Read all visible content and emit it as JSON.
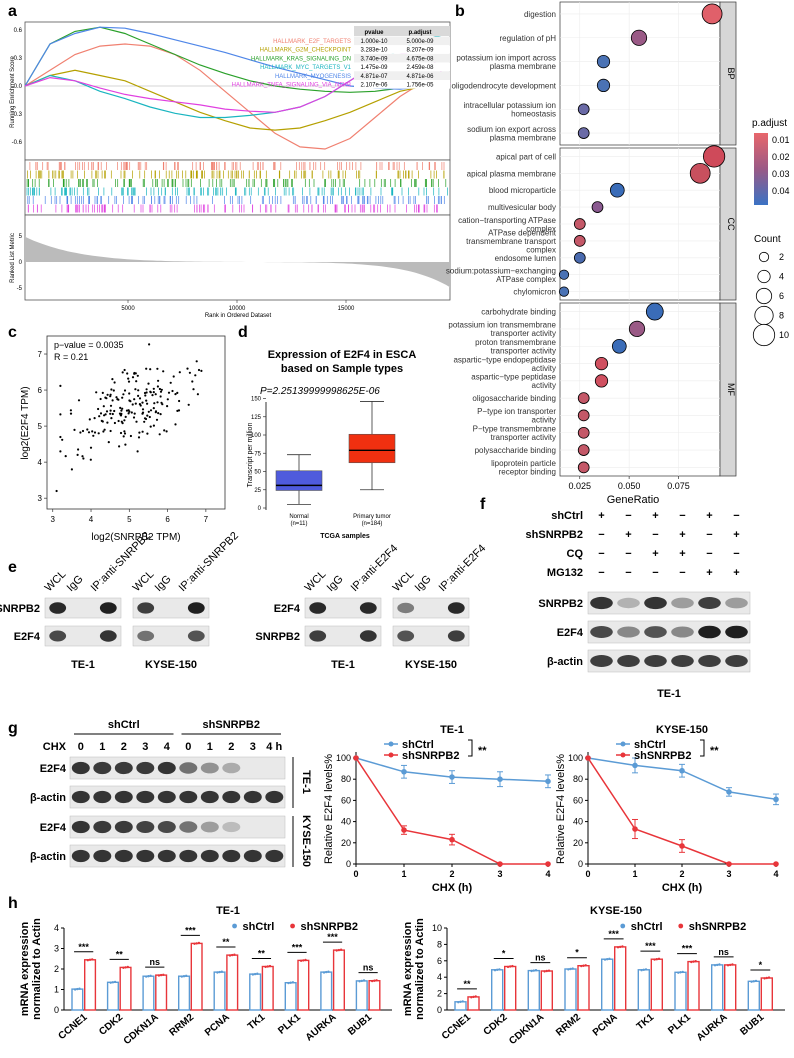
{
  "panel_labels": {
    "a": "a",
    "b": "b",
    "c": "c",
    "d": "d",
    "e": "e",
    "f": "f",
    "g": "g",
    "h": "h"
  },
  "panel_a": {
    "ylabel_top": "Running Enrichment Score",
    "ylabel_bottom": "Ranked List Metric",
    "xlabel": "Rank in Ordered Dataset",
    "yticks_top": [
      "0.6",
      "0.3",
      "0.0",
      "-0.3",
      "-0.6"
    ],
    "yticks_bottom": [
      "5",
      "0",
      "-5"
    ],
    "xticks": [
      "5000",
      "10000",
      "15000"
    ],
    "table_headers": [
      "pvalue",
      "p.adjust"
    ],
    "sets": [
      {
        "name": "HALLMARK_E2F_TARGETS",
        "pvalue": "1.000e-10",
        "padj": "5.000e-09",
        "color": "#f08070"
      },
      {
        "name": "HALLMARK_G2M_CHECKPOINT",
        "pvalue": "3.283e-10",
        "padj": "8.207e-09",
        "color": "#b5a000"
      },
      {
        "name": "HALLMARK_KRAS_SIGNALING_DN",
        "pvalue": "3.740e-09",
        "padj": "4.675e-08",
        "color": "#2aa02a"
      },
      {
        "name": "HALLMARK_MYC_TARGETS_V1",
        "pvalue": "1.475e-09",
        "padj": "2.459e-08",
        "color": "#1ab5c0"
      },
      {
        "name": "HALLMARK_MYOGENESIS",
        "pvalue": "4.871e-07",
        "padj": "4.871e-06",
        "color": "#4f86e8"
      },
      {
        "name": "HALLMARK_TNFA_SIGNALING_VIA_NFKB",
        "pvalue": "2.107e-06",
        "padj": "1.756e-05",
        "color": "#e040e0"
      }
    ]
  },
  "panel_b": {
    "xlabel": "GeneRatio",
    "xticks": [
      "0.025",
      "0.050",
      "0.075"
    ],
    "facets": [
      "BP",
      "CC",
      "MF"
    ],
    "legend_color_title": "p.adjust",
    "legend_color_ticks": [
      "0.01",
      "0.02",
      "0.03",
      "0.04"
    ],
    "legend_size_title": "Count",
    "legend_size_ticks": [
      "2",
      "4",
      "6",
      "8",
      "10"
    ],
    "terms": [
      {
        "label": "digestion",
        "facet": "BP",
        "ratio": 0.092,
        "count": 9,
        "color": "#e0606a"
      },
      {
        "label": "regulation of pH",
        "facet": "BP",
        "ratio": 0.055,
        "count": 6,
        "color": "#9a5a86"
      },
      {
        "label": "potassium ion import across\nplasma membrane",
        "facet": "BP",
        "ratio": 0.037,
        "count": 4,
        "color": "#4a72b4"
      },
      {
        "label": "oligodendrocyte development",
        "facet": "BP",
        "ratio": 0.037,
        "count": 4,
        "color": "#4a72b4"
      },
      {
        "label": "intracellular potassium ion\nhomeostasis",
        "facet": "BP",
        "ratio": 0.027,
        "count": 3,
        "color": "#6a6aa6"
      },
      {
        "label": "sodium ion export across\nplasma membrane",
        "facet": "BP",
        "ratio": 0.027,
        "count": 3,
        "color": "#6a6aa6"
      },
      {
        "label": "apical part of cell",
        "facet": "CC",
        "ratio": 0.093,
        "count": 10,
        "color": "#cf4a5a"
      },
      {
        "label": "apical plasma membrane",
        "facet": "CC",
        "ratio": 0.086,
        "count": 9,
        "color": "#c8505e"
      },
      {
        "label": "blood microparticle",
        "facet": "CC",
        "ratio": 0.044,
        "count": 5,
        "color": "#3a6cb8"
      },
      {
        "label": "multivesicular body",
        "facet": "CC",
        "ratio": 0.034,
        "count": 3,
        "color": "#8a5a90"
      },
      {
        "label": "cation−transporting ATPase\ncomplex",
        "facet": "CC",
        "ratio": 0.025,
        "count": 3,
        "color": "#c45868"
      },
      {
        "label": "ATPase dependent\ntransmembrane transport\ncomplex",
        "facet": "CC",
        "ratio": 0.025,
        "count": 3,
        "color": "#c45868"
      },
      {
        "label": "endosome lumen",
        "facet": "CC",
        "ratio": 0.025,
        "count": 3,
        "color": "#4a6aae"
      },
      {
        "label": "sodium:potassium−exchanging\nATPase complex",
        "facet": "CC",
        "ratio": 0.017,
        "count": 2,
        "color": "#4a72b4"
      },
      {
        "label": "chylomicron",
        "facet": "CC",
        "ratio": 0.017,
        "count": 2,
        "color": "#4a72b4"
      },
      {
        "label": "carbohydrate binding",
        "facet": "MF",
        "ratio": 0.063,
        "count": 7,
        "color": "#3a6cb8"
      },
      {
        "label": "potassium ion transmembrane\ntransporter activity",
        "facet": "MF",
        "ratio": 0.054,
        "count": 6,
        "color": "#9a5a86"
      },
      {
        "label": "proton transmembrane\ntransporter activity",
        "facet": "MF",
        "ratio": 0.045,
        "count": 5,
        "color": "#3a6cb8"
      },
      {
        "label": "aspartic−type endopeptidase\nactivity",
        "facet": "MF",
        "ratio": 0.036,
        "count": 4,
        "color": "#d05060"
      },
      {
        "label": "aspartic−type peptidase\nactivity",
        "facet": "MF",
        "ratio": 0.036,
        "count": 4,
        "color": "#d05060"
      },
      {
        "label": "oligosaccharide binding",
        "facet": "MF",
        "ratio": 0.027,
        "count": 3,
        "color": "#c45868"
      },
      {
        "label": "P−type ion transporter\nactivity",
        "facet": "MF",
        "ratio": 0.027,
        "count": 3,
        "color": "#c45868"
      },
      {
        "label": "P−type transmembrane\ntransporter activity",
        "facet": "MF",
        "ratio": 0.027,
        "count": 3,
        "color": "#c45868"
      },
      {
        "label": "polysaccharide binding",
        "facet": "MF",
        "ratio": 0.027,
        "count": 3,
        "color": "#c45868"
      },
      {
        "label": "lipoprotein particle\nreceptor binding",
        "facet": "MF",
        "ratio": 0.027,
        "count": 3,
        "color": "#c45868"
      }
    ]
  },
  "panel_c": {
    "xlabel": "log2(SNRPB2 TPM)",
    "ylabel": "log2(E2F4 TPM)",
    "annot_p": "p−value = 0.0035",
    "annot_r": "R = 0.21",
    "xticks": [
      "3",
      "4",
      "5",
      "6",
      "7"
    ],
    "yticks": [
      "3",
      "4",
      "5",
      "6",
      "7"
    ]
  },
  "panel_d": {
    "title_l1": "Expression of E2F4 in ESCA",
    "title_l2": "based on Sample types",
    "pval": "P=2.25139999998625E-06",
    "ylabel": "Transcript per million",
    "xlabel": "TCGA samples",
    "yticks": [
      "0",
      "25",
      "50",
      "75",
      "100",
      "125",
      "150"
    ],
    "groups": [
      {
        "name": "Normal",
        "n": "(n=11)",
        "q1": 24,
        "median": 31,
        "q3": 51,
        "min": 5,
        "max": 73,
        "color": "#4f5bdc"
      },
      {
        "name": "Primary tumor",
        "n": "(n=184)",
        "q1": 62,
        "median": 79,
        "q3": 101,
        "min": 25,
        "max": 146,
        "color": "#f03010"
      }
    ]
  },
  "panel_e": {
    "left": {
      "cols": [
        "WCL",
        "IgG",
        "IP:anti-SNRPB2"
      ],
      "rows": [
        "SNRPB2",
        "E2F4"
      ],
      "cells": [
        "TE-1",
        "KYSE-150"
      ]
    },
    "right": {
      "cols": [
        "WCL",
        "IgG",
        "IP:anti-E2F4"
      ],
      "rows": [
        "E2F4",
        "SNRPB2"
      ],
      "cells": [
        "TE-1",
        "KYSE-150"
      ]
    }
  },
  "panel_f": {
    "rows": [
      {
        "label": "shCtrl",
        "signs": [
          "+",
          "−",
          "+",
          "−",
          "+",
          "−"
        ]
      },
      {
        "label": "shSNRPB2",
        "signs": [
          "−",
          "+",
          "−",
          "+",
          "−",
          "+"
        ]
      },
      {
        "label": "CQ",
        "signs": [
          "−",
          "−",
          "+",
          "+",
          "−",
          "−"
        ]
      },
      {
        "label": "MG132",
        "signs": [
          "−",
          "−",
          "−",
          "−",
          "+",
          "+"
        ]
      }
    ],
    "blots": [
      "SNRPB2",
      "E2F4",
      "β-actin"
    ],
    "cell": "TE-1"
  },
  "panel_g": {
    "group_labels": [
      "shCtrl",
      "shSNRPB2"
    ],
    "chx_label": "CHX",
    "times": [
      "0",
      "1",
      "2",
      "3",
      "4",
      "0",
      "1",
      "2",
      "3",
      "4 h"
    ],
    "blots": [
      "E2F4",
      "β-actin",
      "E2F4",
      "β-actin"
    ],
    "cell_labels": [
      "TE-1",
      "KYSE-150"
    ],
    "charts": [
      {
        "title": "TE-1",
        "ylabel": "Relative E2F4 levels%",
        "xlabel": "CHX (h)",
        "sig": "**",
        "x": [
          0,
          1,
          2,
          3,
          4
        ],
        "xticks": [
          "0",
          "1",
          "2",
          "3",
          "4"
        ],
        "yticks": [
          "0",
          "20",
          "40",
          "60",
          "80",
          "100"
        ],
        "ylim": [
          0,
          100
        ],
        "series": [
          {
            "name": "shCtrl",
            "values": [
              100,
              87,
              82,
              80,
              78
            ],
            "err": [
              0,
              6,
              6,
              7,
              6
            ],
            "color": "#5b9bd5"
          },
          {
            "name": "shSNRPB2",
            "values": [
              100,
              32,
              23,
              0,
              0
            ],
            "err": [
              0,
              4,
              5,
              0,
              0
            ],
            "color": "#e8353a"
          }
        ]
      },
      {
        "title": "KYSE-150",
        "ylabel": "Relative E2F4 levels%",
        "xlabel": "CHX (h)",
        "sig": "**",
        "x": [
          0,
          1,
          2,
          3,
          4
        ],
        "xticks": [
          "0",
          "1",
          "2",
          "3",
          "4"
        ],
        "yticks": [
          "0",
          "20",
          "40",
          "60",
          "80",
          "100"
        ],
        "ylim": [
          0,
          100
        ],
        "series": [
          {
            "name": "shCtrl",
            "values": [
              100,
              93,
              88,
              68,
              61
            ],
            "err": [
              0,
              7,
              6,
              4,
              5
            ],
            "color": "#5b9bd5"
          },
          {
            "name": "shSNRPB2",
            "values": [
              100,
              33,
              17,
              0,
              0
            ],
            "err": [
              0,
              9,
              6,
              0,
              0
            ],
            "color": "#e8353a"
          }
        ]
      }
    ]
  },
  "chart_data": [
    {
      "type": "bar",
      "title": "TE-1",
      "ylabel": "mRNA expression\nnormalized to Actin",
      "ylim": [
        0,
        4
      ],
      "yticks": [
        "0",
        "1",
        "2",
        "3",
        "4"
      ],
      "categories": [
        "CCNE1",
        "CDK2",
        "CDKN1A",
        "RRM2",
        "PCNA",
        "TK1",
        "PLK1",
        "AURKA",
        "BUB1"
      ],
      "sig": [
        "***",
        "**",
        "ns",
        "***",
        "**",
        "**",
        "***",
        "***",
        "ns"
      ],
      "series": [
        {
          "name": "shCtrl",
          "values": [
            1.02,
            1.35,
            1.65,
            1.65,
            1.85,
            1.75,
            1.33,
            1.85,
            1.42
          ],
          "color": "#5b9bd5"
        },
        {
          "name": "shSNRPB2",
          "values": [
            2.45,
            2.08,
            1.7,
            3.25,
            2.68,
            2.12,
            2.42,
            2.92,
            1.43
          ],
          "color": "#e8353a"
        }
      ]
    },
    {
      "type": "bar",
      "title": "KYSE-150",
      "ylabel": "mRNA expression\nnormalized to Actin",
      "ylim": [
        0,
        10
      ],
      "yticks": [
        "0",
        "2",
        "4",
        "6",
        "8",
        "10"
      ],
      "categories": [
        "CCNE1",
        "CDK2",
        "CDKN1A",
        "RRM2",
        "PCNA",
        "TK1",
        "PLK1",
        "AURKA",
        "BUB1"
      ],
      "sig": [
        "**",
        "*",
        "ns",
        "*",
        "***",
        "***",
        "***",
        "ns",
        "*"
      ],
      "series": [
        {
          "name": "shCtrl",
          "values": [
            1.0,
            4.9,
            4.8,
            5.0,
            6.2,
            4.9,
            4.6,
            5.5,
            3.5
          ],
          "color": "#5b9bd5"
        },
        {
          "name": "shSNRPB2",
          "values": [
            1.6,
            5.3,
            4.75,
            5.4,
            7.7,
            6.2,
            5.9,
            5.5,
            3.9
          ],
          "color": "#e8353a"
        }
      ]
    }
  ]
}
